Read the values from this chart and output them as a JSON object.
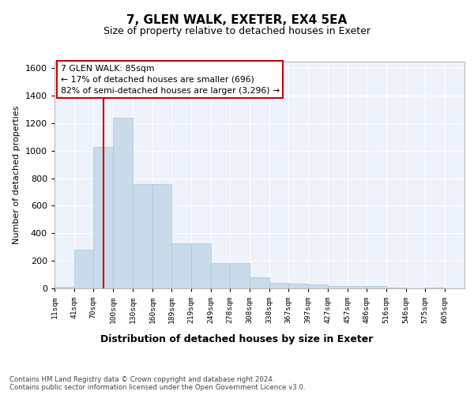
{
  "title1": "7, GLEN WALK, EXETER, EX4 5EA",
  "title2": "Size of property relative to detached houses in Exeter",
  "xlabel": "Distribution of detached houses by size in Exeter",
  "ylabel": "Number of detached properties",
  "bar_color": "#c9daea",
  "bar_edge_color": "#aec6d8",
  "vline_x": 85,
  "vline_color": "#cc0000",
  "annotation_text": "7 GLEN WALK: 85sqm\n← 17% of detached houses are smaller (696)\n82% of semi-detached houses are larger (3,296) →",
  "annotation_box_color": "white",
  "annotation_box_edge": "#cc0000",
  "footer": "Contains HM Land Registry data © Crown copyright and database right 2024.\nContains public sector information licensed under the Open Government Licence v3.0.",
  "bin_labels": [
    "11sqm",
    "41sqm",
    "70sqm",
    "100sqm",
    "130sqm",
    "160sqm",
    "189sqm",
    "219sqm",
    "249sqm",
    "278sqm",
    "308sqm",
    "338sqm",
    "367sqm",
    "397sqm",
    "427sqm",
    "457sqm",
    "486sqm",
    "516sqm",
    "546sqm",
    "575sqm",
    "605sqm"
  ],
  "bin_edges": [
    11,
    41,
    70,
    100,
    130,
    160,
    189,
    219,
    249,
    278,
    308,
    338,
    367,
    397,
    427,
    457,
    486,
    516,
    546,
    575,
    605,
    635
  ],
  "bar_heights": [
    10,
    280,
    1030,
    1240,
    760,
    760,
    330,
    330,
    185,
    185,
    80,
    42,
    35,
    30,
    20,
    18,
    18,
    5,
    2,
    5,
    2
  ],
  "ylim": [
    0,
    1650
  ],
  "yticks": [
    0,
    200,
    400,
    600,
    800,
    1000,
    1200,
    1400,
    1600
  ],
  "background_color": "#eef2fb"
}
